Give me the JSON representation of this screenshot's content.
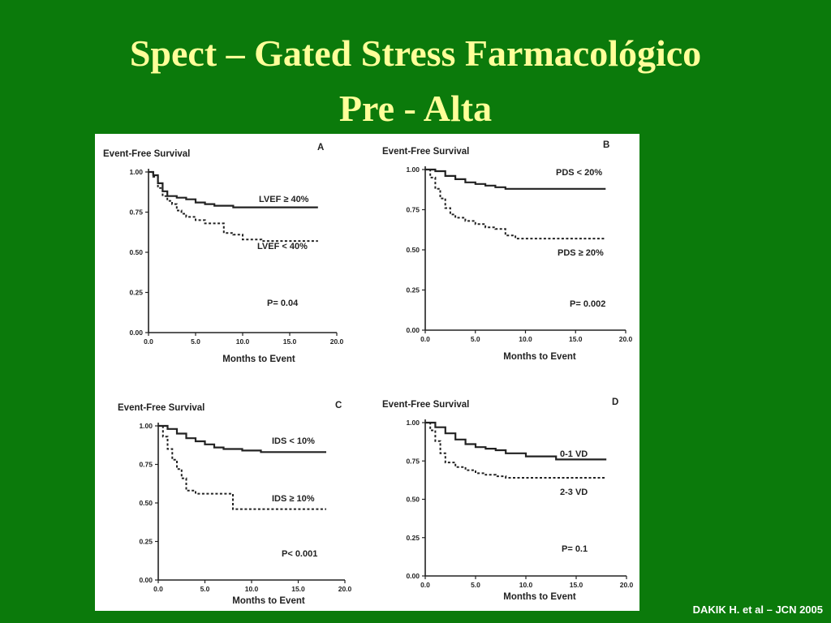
{
  "slide": {
    "title_line1": "Spect – Gated Stress Farmacológico",
    "title_line2": "Pre - Alta",
    "citation": "DAKIK H. et al – JCN 2005"
  },
  "colors": {
    "background": "#0b7a0b",
    "title": "#ffff99",
    "citation": "#ffffff",
    "panel": "#ffffff",
    "ink": "#222222"
  },
  "chart_data": [
    {
      "type": "line",
      "panel_letter": "A",
      "ylabel": "Event-Free Survival",
      "xlabel": "Months to Event",
      "xticks": [
        "0.0",
        "5.0",
        "10.0",
        "15.0",
        "20.0"
      ],
      "yticks": [
        "0.00",
        "0.25",
        "0.50",
        "0.75",
        "1.00"
      ],
      "xlim": [
        0,
        20
      ],
      "ylim": [
        0,
        1
      ],
      "annotation": "P= 0.04",
      "series": [
        {
          "name": "LVEF ≥ 40%",
          "style": "solid",
          "x": [
            0,
            0.5,
            1,
            1.5,
            2,
            3,
            4,
            5,
            6,
            7,
            9,
            11,
            18
          ],
          "y": [
            1.0,
            0.98,
            0.93,
            0.88,
            0.85,
            0.84,
            0.83,
            0.81,
            0.8,
            0.79,
            0.78,
            0.78,
            0.78
          ]
        },
        {
          "name": "LVEF < 40%",
          "style": "dashed",
          "x": [
            0,
            0.5,
            1,
            1.5,
            2,
            2.5,
            3,
            3.5,
            4,
            5,
            6,
            7,
            8,
            9,
            10,
            12,
            14,
            18
          ],
          "y": [
            1.0,
            0.97,
            0.9,
            0.85,
            0.82,
            0.8,
            0.76,
            0.74,
            0.72,
            0.7,
            0.68,
            0.68,
            0.62,
            0.61,
            0.58,
            0.57,
            0.57,
            0.57
          ]
        }
      ]
    },
    {
      "type": "line",
      "panel_letter": "B",
      "ylabel": "Event-Free Survival",
      "xlabel": "Months to Event",
      "xticks": [
        "0.0",
        "5.0",
        "10.0",
        "15.0",
        "20.0"
      ],
      "yticks": [
        "0.00",
        "0.25",
        "0.50",
        "0.75",
        "1.00"
      ],
      "xlim": [
        0,
        20
      ],
      "ylim": [
        0,
        1
      ],
      "annotation": "P= 0.002",
      "series": [
        {
          "name": "PDS < 20%",
          "style": "solid",
          "x": [
            0,
            1,
            2,
            3,
            4,
            5,
            6,
            7,
            8,
            10,
            13,
            18
          ],
          "y": [
            1.0,
            0.99,
            0.96,
            0.94,
            0.92,
            0.91,
            0.9,
            0.89,
            0.88,
            0.88,
            0.88,
            0.88
          ]
        },
        {
          "name": "PDS ≥ 20%",
          "style": "dashed",
          "x": [
            0,
            0.5,
            1,
            1.5,
            2,
            2.5,
            3,
            4,
            5,
            6,
            7,
            8,
            9,
            12,
            15,
            18
          ],
          "y": [
            1.0,
            0.95,
            0.88,
            0.82,
            0.76,
            0.72,
            0.7,
            0.68,
            0.66,
            0.64,
            0.63,
            0.59,
            0.57,
            0.57,
            0.57,
            0.57
          ]
        }
      ]
    },
    {
      "type": "line",
      "panel_letter": "C",
      "ylabel": "Event-Free Survival",
      "xlabel": "Months to Event",
      "xticks": [
        "0.0",
        "5.0",
        "10.0",
        "15.0",
        "20.0"
      ],
      "yticks": [
        "0.00",
        "0.25",
        "0.50",
        "0.75",
        "1.00"
      ],
      "xlim": [
        0,
        20
      ],
      "ylim": [
        0,
        1
      ],
      "annotation": "P< 0.001",
      "series": [
        {
          "name": "IDS < 10%",
          "style": "solid",
          "x": [
            0,
            1,
            2,
            3,
            4,
            5,
            6,
            7,
            9,
            11,
            14,
            18
          ],
          "y": [
            1.0,
            0.98,
            0.95,
            0.92,
            0.9,
            0.88,
            0.86,
            0.85,
            0.84,
            0.83,
            0.83,
            0.83
          ]
        },
        {
          "name": "IDS ≥ 10%",
          "style": "dashed",
          "x": [
            0,
            0.5,
            1,
            1.5,
            2,
            2.5,
            3,
            4,
            6,
            7.8,
            8,
            9,
            12,
            15,
            18
          ],
          "y": [
            1.0,
            0.93,
            0.85,
            0.78,
            0.72,
            0.66,
            0.58,
            0.56,
            0.56,
            0.56,
            0.46,
            0.46,
            0.46,
            0.46,
            0.46
          ]
        }
      ]
    },
    {
      "type": "line",
      "panel_letter": "D",
      "ylabel": "Event-Free Survival",
      "xlabel": "Months to Event",
      "xticks": [
        "0.0",
        "5.0",
        "10.0",
        "15.0",
        "20.0"
      ],
      "yticks": [
        "0.00",
        "0.25",
        "0.50",
        "0.75",
        "1.00"
      ],
      "xlim": [
        0,
        20
      ],
      "ylim": [
        0,
        1
      ],
      "annotation": "P= 0.1",
      "series": [
        {
          "name": "0-1 VD",
          "style": "solid",
          "x": [
            0,
            1,
            2,
            3,
            4,
            5,
            6,
            7,
            8,
            10,
            13,
            18
          ],
          "y": [
            1.0,
            0.97,
            0.93,
            0.89,
            0.86,
            0.84,
            0.83,
            0.82,
            0.8,
            0.78,
            0.76,
            0.76
          ]
        },
        {
          "name": "2-3 VD",
          "style": "dashed",
          "x": [
            0,
            0.5,
            1,
            1.5,
            2,
            3,
            4,
            5,
            6,
            7,
            8,
            10,
            14,
            18
          ],
          "y": [
            1.0,
            0.95,
            0.88,
            0.8,
            0.74,
            0.71,
            0.69,
            0.67,
            0.66,
            0.65,
            0.64,
            0.64,
            0.64,
            0.64
          ]
        }
      ]
    }
  ]
}
